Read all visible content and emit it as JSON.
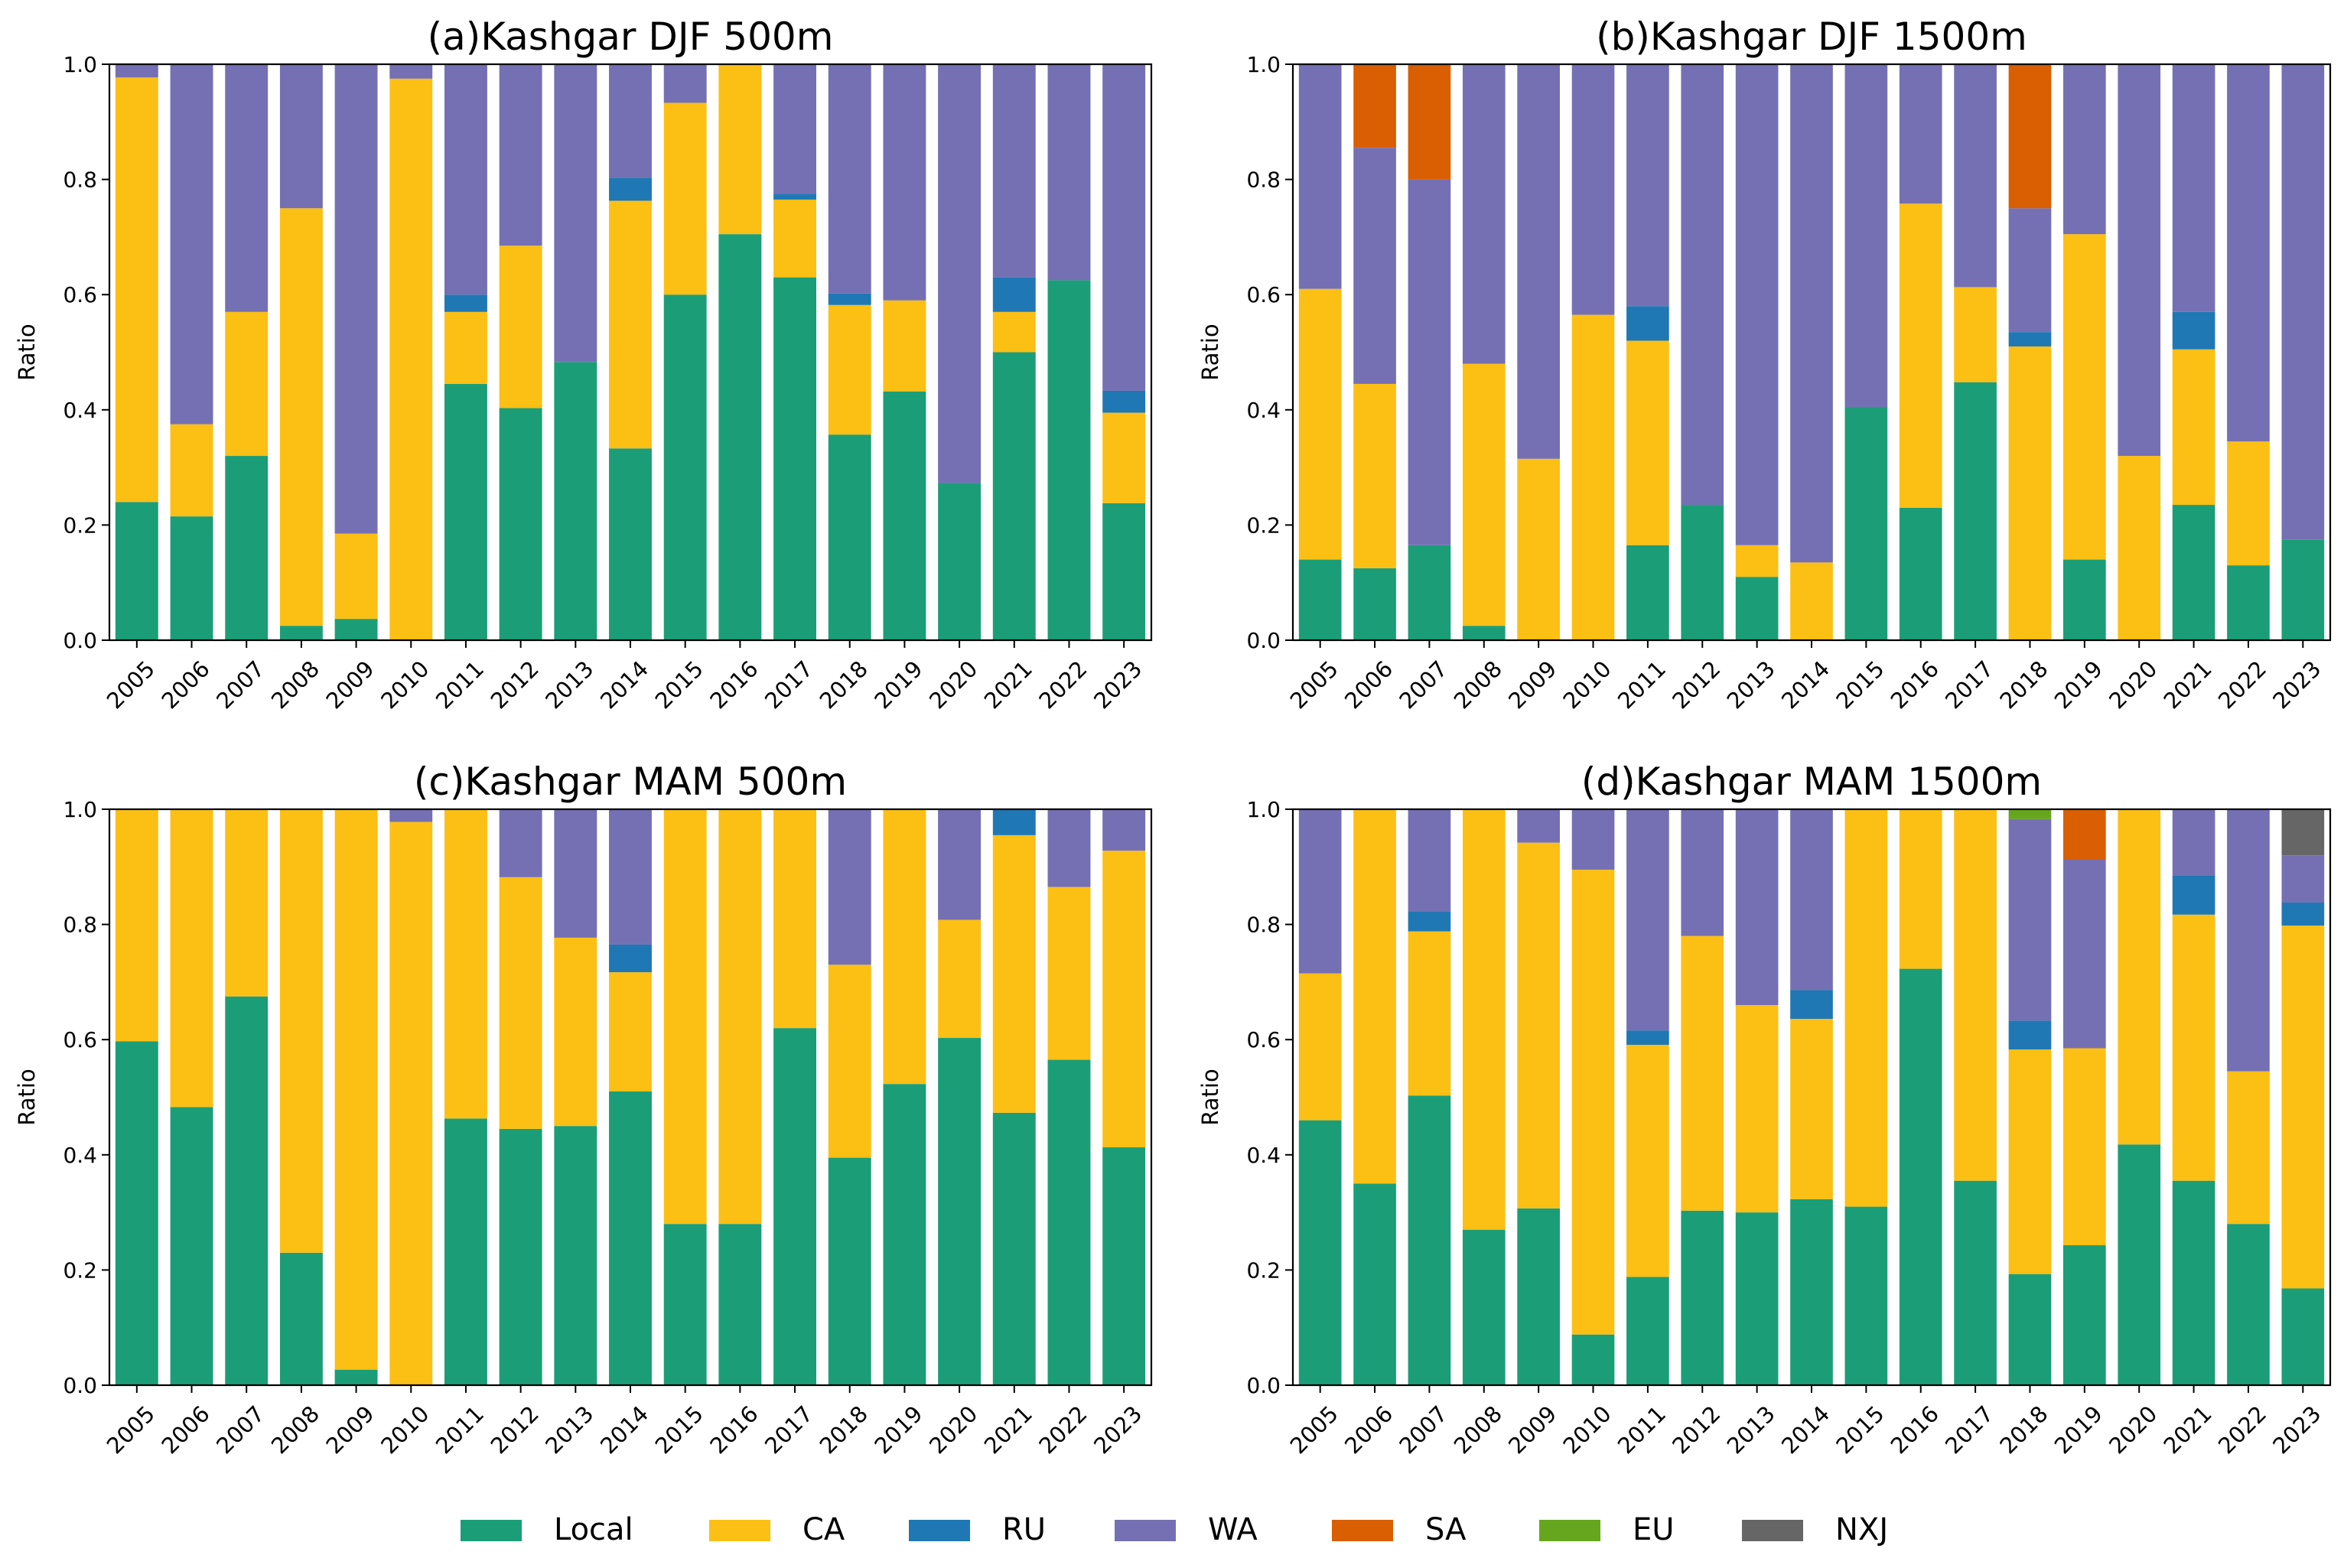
{
  "figure": {
    "legend": [
      {
        "name": "Local",
        "color": "#1b9e77"
      },
      {
        "name": "CA",
        "color": "#fcbf14"
      },
      {
        "name": "RU",
        "color": "#1f78b4"
      },
      {
        "name": "WA",
        "color": "#7570b3"
      },
      {
        "name": "SA",
        "color": "#d95f02"
      },
      {
        "name": "EU",
        "color": "#66a61e"
      },
      {
        "name": "NXJ",
        "color": "#666666"
      }
    ]
  },
  "chart_data": [
    {
      "type": "bar",
      "stacked": true,
      "title": "(a)Kashgar DJF 500m",
      "xlabel": "",
      "ylabel": "Ratio",
      "ylim": [
        0,
        1
      ],
      "yticks": [
        "0.0",
        "0.2",
        "0.4",
        "0.6",
        "0.8",
        "1.0"
      ],
      "categories": [
        "2005",
        "2006",
        "2007",
        "2008",
        "2009",
        "2010",
        "2011",
        "2012",
        "2013",
        "2014",
        "2015",
        "2016",
        "2017",
        "2018",
        "2019",
        "2020",
        "2021",
        "2022",
        "2023"
      ],
      "series": [
        {
          "name": "Local",
          "values": [
            0.24,
            0.215,
            0.32,
            0.025,
            0.037,
            0.0,
            0.445,
            0.403,
            0.483,
            0.333,
            0.6,
            0.705,
            0.63,
            0.357,
            0.432,
            0.273,
            0.5,
            0.625,
            0.238
          ]
        },
        {
          "name": "CA",
          "values": [
            0.737,
            0.16,
            0.25,
            0.725,
            0.148,
            0.975,
            0.125,
            0.282,
            0.0,
            0.43,
            0.333,
            0.295,
            0.135,
            0.225,
            0.158,
            0.0,
            0.07,
            0.0,
            0.157
          ]
        },
        {
          "name": "RU",
          "values": [
            0.0,
            0.0,
            0.0,
            0.0,
            0.0,
            0.0,
            0.03,
            0.0,
            0.0,
            0.04,
            0.0,
            0.0,
            0.01,
            0.02,
            0.0,
            0.0,
            0.06,
            0.0,
            0.038
          ]
        },
        {
          "name": "WA",
          "values": [
            0.023,
            0.625,
            0.43,
            0.25,
            0.815,
            0.025,
            0.4,
            0.315,
            0.517,
            0.197,
            0.067,
            0.0,
            0.225,
            0.398,
            0.41,
            0.727,
            0.37,
            0.375,
            0.567
          ]
        },
        {
          "name": "SA",
          "values": [
            0,
            0,
            0,
            0,
            0,
            0,
            0,
            0,
            0,
            0,
            0,
            0,
            0,
            0,
            0,
            0,
            0,
            0,
            0
          ]
        },
        {
          "name": "EU",
          "values": [
            0,
            0,
            0,
            0,
            0,
            0,
            0,
            0,
            0,
            0,
            0,
            0,
            0,
            0,
            0,
            0,
            0,
            0,
            0
          ]
        },
        {
          "name": "NXJ",
          "values": [
            0,
            0,
            0,
            0,
            0,
            0,
            0,
            0,
            0,
            0,
            0,
            0,
            0,
            0,
            0,
            0,
            0,
            0,
            0
          ]
        }
      ]
    },
    {
      "type": "bar",
      "stacked": true,
      "title": "(b)Kashgar DJF 1500m",
      "xlabel": "",
      "ylabel": "Ratio",
      "ylim": [
        0,
        1
      ],
      "yticks": [
        "0.0",
        "0.2",
        "0.4",
        "0.6",
        "0.8",
        "1.0"
      ],
      "categories": [
        "2005",
        "2006",
        "2007",
        "2008",
        "2009",
        "2010",
        "2011",
        "2012",
        "2013",
        "2014",
        "2015",
        "2016",
        "2017",
        "2018",
        "2019",
        "2020",
        "2021",
        "2022",
        "2023"
      ],
      "series": [
        {
          "name": "Local",
          "values": [
            0.14,
            0.125,
            0.165,
            0.025,
            0.0,
            0.0,
            0.165,
            0.235,
            0.11,
            0.0,
            0.405,
            0.23,
            0.448,
            0.0,
            0.14,
            0.0,
            0.235,
            0.13,
            0.175
          ]
        },
        {
          "name": "CA",
          "values": [
            0.47,
            0.32,
            0.0,
            0.455,
            0.315,
            0.565,
            0.355,
            0.0,
            0.055,
            0.135,
            0.0,
            0.528,
            0.165,
            0.51,
            0.565,
            0.32,
            0.27,
            0.215,
            0.0
          ]
        },
        {
          "name": "RU",
          "values": [
            0.0,
            0.0,
            0.0,
            0.0,
            0.0,
            0.0,
            0.06,
            0.0,
            0.0,
            0.0,
            0.0,
            0.0,
            0.0,
            0.025,
            0.0,
            0.0,
            0.065,
            0.0,
            0.0
          ]
        },
        {
          "name": "WA",
          "values": [
            0.39,
            0.41,
            0.635,
            0.52,
            0.685,
            0.435,
            0.42,
            0.765,
            0.835,
            0.865,
            0.595,
            0.242,
            0.387,
            0.215,
            0.295,
            0.68,
            0.43,
            0.655,
            0.825
          ]
        },
        {
          "name": "SA",
          "values": [
            0.0,
            0.145,
            0.2,
            0.0,
            0.0,
            0.0,
            0.0,
            0.0,
            0.0,
            0.0,
            0.0,
            0.0,
            0.0,
            0.25,
            0.0,
            0.0,
            0.0,
            0.0,
            0.0
          ]
        },
        {
          "name": "EU",
          "values": [
            0,
            0,
            0,
            0,
            0,
            0,
            0,
            0,
            0,
            0,
            0,
            0,
            0,
            0,
            0,
            0,
            0,
            0,
            0
          ]
        },
        {
          "name": "NXJ",
          "values": [
            0,
            0,
            0,
            0,
            0,
            0,
            0,
            0,
            0,
            0,
            0,
            0,
            0,
            0,
            0,
            0,
            0,
            0,
            0
          ]
        }
      ]
    },
    {
      "type": "bar",
      "stacked": true,
      "title": "(c)Kashgar MAM 500m",
      "xlabel": "",
      "ylabel": "Ratio",
      "ylim": [
        0,
        1
      ],
      "yticks": [
        "0.0",
        "0.2",
        "0.4",
        "0.6",
        "0.8",
        "1.0"
      ],
      "categories": [
        "2005",
        "2006",
        "2007",
        "2008",
        "2009",
        "2010",
        "2011",
        "2012",
        "2013",
        "2014",
        "2015",
        "2016",
        "2017",
        "2018",
        "2019",
        "2020",
        "2021",
        "2022",
        "2023"
      ],
      "series": [
        {
          "name": "Local",
          "values": [
            0.597,
            0.483,
            0.675,
            0.23,
            0.027,
            0.0,
            0.463,
            0.445,
            0.45,
            0.51,
            0.28,
            0.28,
            0.62,
            0.395,
            0.523,
            0.603,
            0.473,
            0.565,
            0.413
          ]
        },
        {
          "name": "CA",
          "values": [
            0.403,
            0.517,
            0.325,
            0.77,
            0.973,
            0.978,
            0.537,
            0.437,
            0.327,
            0.207,
            0.72,
            0.72,
            0.38,
            0.335,
            0.477,
            0.205,
            0.482,
            0.3,
            0.515
          ]
        },
        {
          "name": "RU",
          "values": [
            0.0,
            0.0,
            0.0,
            0.0,
            0.0,
            0.0,
            0.0,
            0.0,
            0.0,
            0.048,
            0.0,
            0.0,
            0.0,
            0.0,
            0.0,
            0.0,
            0.045,
            0.0,
            0.0
          ]
        },
        {
          "name": "WA",
          "values": [
            0.0,
            0.0,
            0.0,
            0.0,
            0.0,
            0.022,
            0.0,
            0.118,
            0.223,
            0.235,
            0.0,
            0.0,
            0.0,
            0.27,
            0.0,
            0.192,
            0.0,
            0.135,
            0.072
          ]
        },
        {
          "name": "SA",
          "values": [
            0,
            0,
            0,
            0,
            0,
            0,
            0,
            0,
            0,
            0,
            0,
            0,
            0,
            0,
            0,
            0,
            0,
            0,
            0
          ]
        },
        {
          "name": "EU",
          "values": [
            0,
            0,
            0,
            0,
            0,
            0,
            0,
            0,
            0,
            0,
            0,
            0,
            0,
            0,
            0,
            0,
            0,
            0,
            0
          ]
        },
        {
          "name": "NXJ",
          "values": [
            0,
            0,
            0,
            0,
            0,
            0,
            0,
            0,
            0,
            0,
            0,
            0,
            0,
            0,
            0,
            0,
            0,
            0,
            0
          ]
        }
      ]
    },
    {
      "type": "bar",
      "stacked": true,
      "title": "(d)Kashgar MAM 1500m",
      "xlabel": "",
      "ylabel": "Ratio",
      "ylim": [
        0,
        1
      ],
      "yticks": [
        "0.0",
        "0.2",
        "0.4",
        "0.6",
        "0.8",
        "1.0"
      ],
      "categories": [
        "2005",
        "2006",
        "2007",
        "2008",
        "2009",
        "2010",
        "2011",
        "2012",
        "2013",
        "2014",
        "2015",
        "2016",
        "2017",
        "2018",
        "2019",
        "2020",
        "2021",
        "2022",
        "2023"
      ],
      "series": [
        {
          "name": "Local",
          "values": [
            0.46,
            0.35,
            0.503,
            0.27,
            0.307,
            0.088,
            0.188,
            0.303,
            0.3,
            0.323,
            0.31,
            0.723,
            0.355,
            0.193,
            0.243,
            0.418,
            0.355,
            0.28,
            0.168
          ]
        },
        {
          "name": "CA",
          "values": [
            0.255,
            0.65,
            0.285,
            0.73,
            0.635,
            0.807,
            0.403,
            0.477,
            0.36,
            0.313,
            0.69,
            0.277,
            0.645,
            0.39,
            0.342,
            0.582,
            0.462,
            0.265,
            0.63
          ]
        },
        {
          "name": "RU",
          "values": [
            0.0,
            0.0,
            0.035,
            0.0,
            0.0,
            0.0,
            0.025,
            0.0,
            0.0,
            0.05,
            0.0,
            0.0,
            0.0,
            0.05,
            0.0,
            0.0,
            0.068,
            0.0,
            0.04
          ]
        },
        {
          "name": "WA",
          "values": [
            0.285,
            0.0,
            0.177,
            0.0,
            0.058,
            0.105,
            0.384,
            0.22,
            0.34,
            0.314,
            0.0,
            0.0,
            0.0,
            0.35,
            0.328,
            0.0,
            0.115,
            0.455,
            0.082
          ]
        },
        {
          "name": "SA",
          "values": [
            0.0,
            0.0,
            0.0,
            0.0,
            0.0,
            0.0,
            0.0,
            0.0,
            0.0,
            0.0,
            0.0,
            0.0,
            0.0,
            0.0,
            0.087,
            0.0,
            0.0,
            0.0,
            0.0
          ]
        },
        {
          "name": "EU",
          "values": [
            0.0,
            0.0,
            0.0,
            0.0,
            0.0,
            0.0,
            0.0,
            0.0,
            0.0,
            0.0,
            0.0,
            0.0,
            0.0,
            0.017,
            0.0,
            0.0,
            0.0,
            0.0,
            0.0
          ]
        },
        {
          "name": "NXJ",
          "values": [
            0.0,
            0.0,
            0.0,
            0.0,
            0.0,
            0.0,
            0.0,
            0.0,
            0.0,
            0.0,
            0.0,
            0.0,
            0.0,
            0.0,
            0.0,
            0.0,
            0.0,
            0.0,
            0.08
          ]
        }
      ]
    }
  ]
}
